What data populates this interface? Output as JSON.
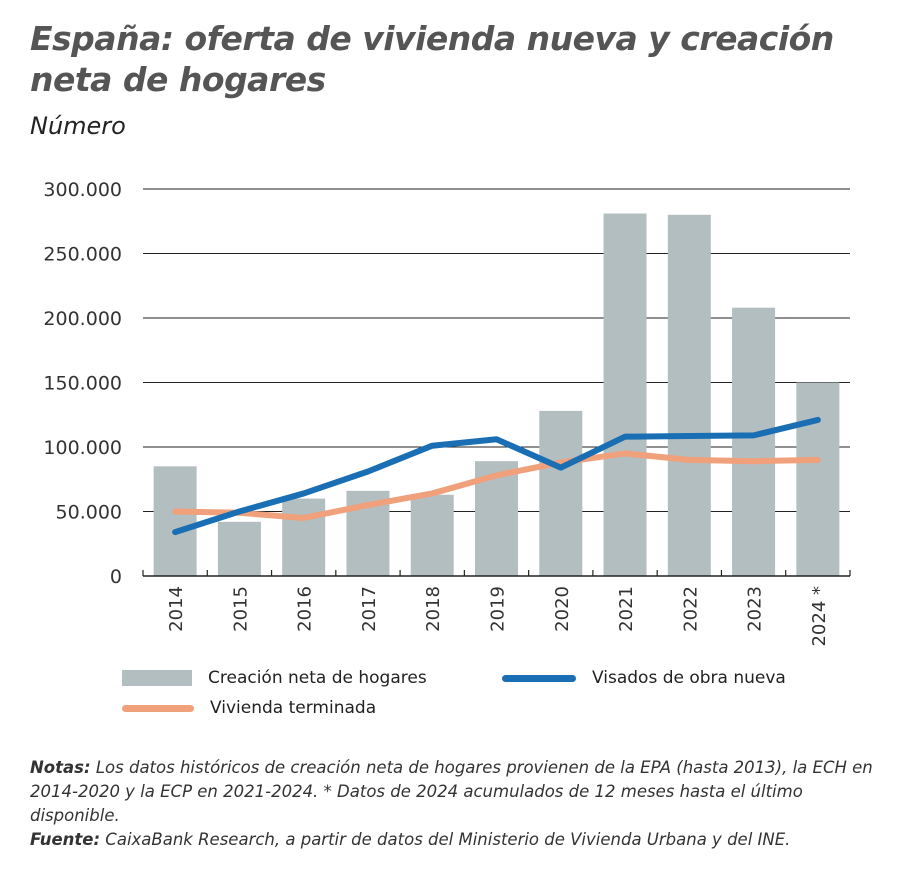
{
  "title": "España: oferta de vivienda nueva y creación neta de hogares",
  "subtitle": "Número",
  "colors": {
    "bars": "#b3bec1",
    "visados": "#1a6fb4",
    "terminada": "#f0a07a"
  },
  "chart_data": {
    "type": "bar",
    "categories": [
      "2014",
      "2015",
      "2016",
      "2017",
      "2018",
      "2019",
      "2020",
      "2021",
      "2022",
      "2023",
      "2024 *"
    ],
    "ylim": [
      0,
      300000
    ],
    "yticks": [
      "0",
      "50.000",
      "100.000",
      "150.000",
      "200.000",
      "250.000",
      "300.000"
    ],
    "grid": true,
    "legend": "bottom",
    "series": [
      {
        "name": "Creación neta de hogares",
        "type": "bar",
        "values": [
          85000,
          42000,
          60000,
          66000,
          63000,
          89000,
          128000,
          281000,
          280000,
          208000,
          150000
        ]
      },
      {
        "name": "Visados de obra nueva",
        "type": "line",
        "values": [
          34000,
          50000,
          64000,
          81000,
          101000,
          106000,
          84000,
          108000,
          108500,
          109000,
          121000
        ]
      },
      {
        "name": "Vivienda terminada",
        "type": "line",
        "values": [
          50000,
          49000,
          45000,
          55000,
          64000,
          78000,
          88000,
          95000,
          90000,
          89000,
          90000
        ]
      }
    ]
  },
  "notes": {
    "notas_label": "Notas:",
    "notas_text": " Los datos históricos de creación neta de hogares provienen de la EPA (hasta 2013), la ECH en 2014-2020 y la ECP en 2021-2024. * Datos de 2024 acumulados de 12 meses hasta el último disponible.",
    "fuente_label": "Fuente:",
    "fuente_text": " CaixaBank Research, a partir de datos del Ministerio de Vivienda Urbana y del INE."
  }
}
